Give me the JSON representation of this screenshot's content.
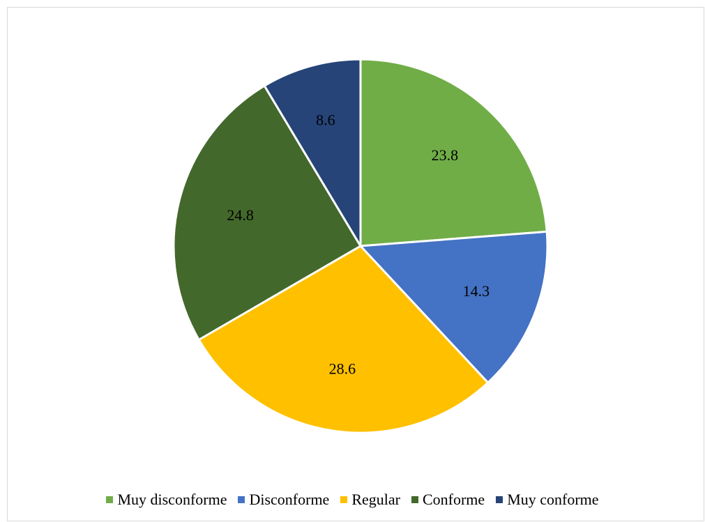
{
  "chart_data": {
    "type": "pie",
    "title": "",
    "categories": [
      "Muy disconforme",
      "Disconforme",
      "Regular",
      "Conforme",
      "Muy conforme"
    ],
    "values": [
      23.8,
      14.3,
      28.6,
      24.8,
      8.6
    ],
    "data_labels": [
      "23.8",
      "14.3",
      "28.6",
      "24.8",
      "8.6"
    ],
    "colors": [
      "#70ad47",
      "#4472c4",
      "#ffc000",
      "#43682b",
      "#264478"
    ],
    "start_angle_deg": 0,
    "direction": "clockwise",
    "legend_position": "bottom"
  }
}
